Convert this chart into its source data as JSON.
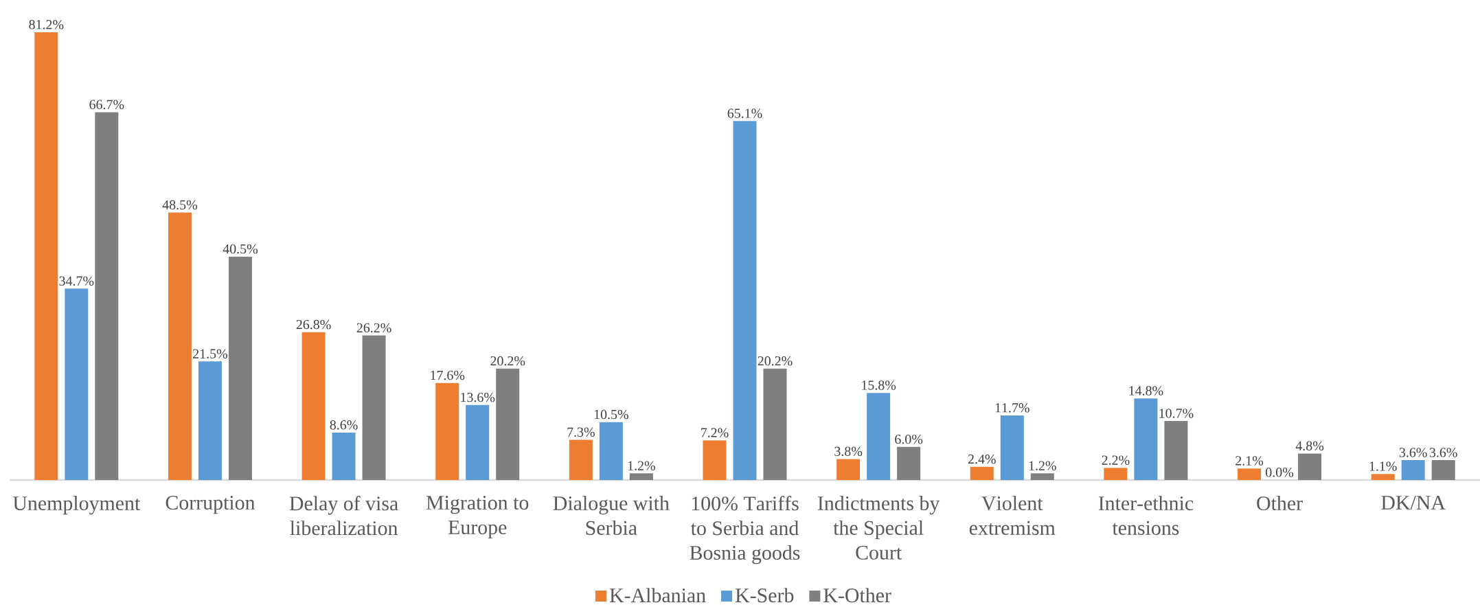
{
  "chart_data": {
    "type": "bar",
    "categories": [
      "Unemployment",
      "Corruption",
      "Delay of visa liberalization",
      "Migration to Europe",
      "Dialogue with Serbia",
      "100% Tariffs to Serbia and Bosnia goods",
      "Indictments by the Special Court",
      "Violent extremism",
      "Inter-ethnic tensions",
      "Other",
      "DK/NA"
    ],
    "series": [
      {
        "name": "K-Albanian",
        "color": "#ed7d31",
        "values": [
          81.2,
          48.5,
          26.8,
          17.6,
          7.3,
          7.2,
          3.8,
          2.4,
          2.2,
          2.1,
          1.1
        ],
        "value_labels": [
          "81.2%",
          "48.5%",
          "26.8%",
          "17.6%",
          "7.3%",
          "7.2%",
          "3.8%",
          "2.4%",
          "2.2%",
          "2.1%",
          "1.1%"
        ]
      },
      {
        "name": "K-Serb",
        "color": "#5b9bd5",
        "values": [
          34.7,
          21.5,
          8.6,
          13.6,
          10.5,
          65.1,
          15.8,
          11.7,
          14.8,
          0.0,
          3.6
        ],
        "value_labels": [
          "34.7%",
          "21.5%",
          "8.6%",
          "13.6%",
          "10.5%",
          "65.1%",
          "15.8%",
          "11.7%",
          "14.8%",
          "0.0%",
          "3.6%"
        ]
      },
      {
        "name": "K-Other",
        "color": "#7f7f7f",
        "values": [
          66.7,
          40.5,
          26.2,
          20.2,
          1.2,
          20.2,
          6.0,
          1.2,
          10.7,
          4.8,
          3.6
        ],
        "value_labels": [
          "66.7%",
          "40.5%",
          "26.2%",
          "20.2%",
          "1.2%",
          "20.2%",
          "6.0%",
          "1.2%",
          "10.7%",
          "4.8%",
          "3.6%"
        ]
      }
    ],
    "legend": "bottom"
  }
}
